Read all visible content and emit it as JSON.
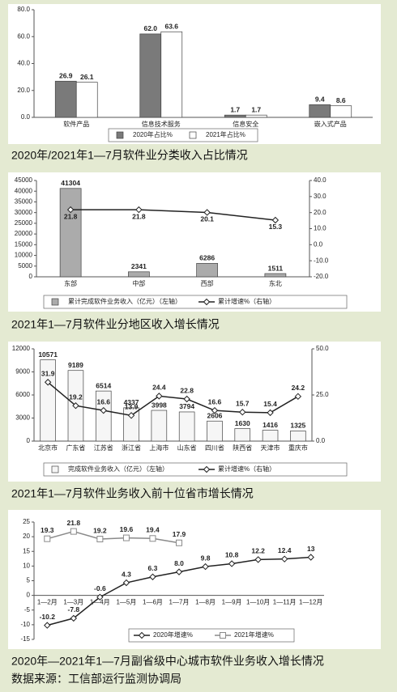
{
  "chart_data": [
    {
      "type": "bar",
      "title": "2020年/2021年1—7月软件业分类收入占比情况",
      "categories": [
        "软件产品",
        "信息技术服务",
        "信息安全",
        "嵌入式产品"
      ],
      "series": [
        {
          "name": "2020年占比%",
          "color": "#7a7a7a",
          "values": [
            26.9,
            62.0,
            1.7,
            9.4
          ],
          "value_labels": [
            "26.9",
            "62.0",
            "1.7",
            "9.4"
          ]
        },
        {
          "name": "2021年占比%",
          "color": "#ffffff",
          "values": [
            26.1,
            63.6,
            1.7,
            8.6
          ],
          "value_labels": [
            "26.1",
            "63.6",
            "1.7",
            "8.6"
          ]
        }
      ],
      "ylim": [
        0,
        80
      ],
      "yticks": [
        {
          "value": 0,
          "label": "0.0"
        },
        {
          "value": 20,
          "label": "20.0"
        },
        {
          "value": 40,
          "label": "40.0"
        },
        {
          "value": 60,
          "label": "60.0"
        },
        {
          "value": 80,
          "label": "80.0"
        }
      ],
      "grid": false
    },
    {
      "type": "bar",
      "title": "2021年1—7月软件业分地区收入增长情况",
      "categories": [
        "东部",
        "中部",
        "西部",
        "东北"
      ],
      "series": [
        {
          "name": "累计完成软件业务收入（亿元）（左轴）",
          "color": "#ababab",
          "values": [
            41304,
            2341,
            6286,
            1511
          ]
        },
        {
          "name": "累计增速%（右轴）",
          "type": "line",
          "axis": "y2",
          "marker": "diamond",
          "color": "#222222",
          "values": [
            21.8,
            21.8,
            20.1,
            15.3
          ]
        }
      ],
      "ylim": [
        0,
        45000
      ],
      "yticks": [
        0,
        5000,
        10000,
        15000,
        20000,
        25000,
        30000,
        35000,
        40000,
        45000
      ],
      "y2lim": [
        -20,
        40
      ],
      "y2ticks": [
        {
          "value": -20,
          "label": "-20.0"
        },
        {
          "value": -10,
          "label": "-10.0"
        },
        {
          "value": 0,
          "label": "0.0"
        },
        {
          "value": 10,
          "label": "10.0"
        },
        {
          "value": 20,
          "label": "20.0"
        },
        {
          "value": 30,
          "label": "30.0"
        },
        {
          "value": 40,
          "label": "40.0"
        }
      ],
      "grid": false
    },
    {
      "type": "bar",
      "title": "2021年1—7月软件业务收入前十位省市增长情况",
      "categories": [
        "北京市",
        "广东省",
        "江苏省",
        "浙江省",
        "上海市",
        "山东省",
        "四川省",
        "陕西省",
        "天津市",
        "重庆市"
      ],
      "series": [
        {
          "name": "完成软件业务收入（亿元）（左轴）",
          "color": "#f6f6f6",
          "values": [
            10571,
            9189,
            6514,
            4337,
            3998,
            3794,
            2606,
            1630,
            1416,
            1325
          ]
        },
        {
          "name": "累计增速%（右轴）",
          "type": "line",
          "axis": "y2",
          "marker": "diamond",
          "color": "#222222",
          "values": [
            31.9,
            19.2,
            16.6,
            13.9,
            24.4,
            22.8,
            16.6,
            15.7,
            15.4,
            24.2
          ]
        }
      ],
      "ylim": [
        0,
        12000
      ],
      "yticks": [
        0,
        3000,
        6000,
        9000,
        12000
      ],
      "y2lim": [
        0,
        50
      ],
      "y2ticks": [
        {
          "value": 0,
          "label": "0.0"
        },
        {
          "value": 25,
          "label": "25.0"
        },
        {
          "value": 50,
          "label": "50.0"
        }
      ],
      "grid": false
    },
    {
      "type": "line",
      "title": "2020年—2021年1—7月副省级中心城市软件业务收入增长情况",
      "categories": [
        "1—2月",
        "1—3月",
        "1—4月",
        "1—5月",
        "1—6月",
        "1—7月",
        "1—8月",
        "1—9月",
        "1—10月",
        "1—11月",
        "1—12月"
      ],
      "series": [
        {
          "name": "2020年增速%",
          "marker": "diamond",
          "color": "#222222",
          "values": [
            -10.2,
            -7.8,
            -0.6,
            4.3,
            6.3,
            8.0,
            9.8,
            10.8,
            12.2,
            12.4,
            13
          ],
          "value_labels": [
            "-10.2",
            "-7.8",
            "-0.6",
            "4.3",
            "6.3",
            "8.0",
            "9.8",
            "10.8",
            "12.2",
            "12.4",
            "13"
          ]
        },
        {
          "name": "2021年增速%",
          "marker": "square",
          "color": "#8a8a8a",
          "values": [
            19.3,
            21.8,
            19.2,
            19.6,
            19.4,
            17.9,
            null,
            null,
            null,
            null,
            null
          ]
        }
      ],
      "ylim": [
        -15,
        25
      ],
      "yticks": [
        -15,
        -10,
        -5,
        0,
        5,
        10,
        15,
        20,
        25
      ],
      "grid": false
    }
  ],
  "source": "数据来源：工信部运行监测协调局"
}
